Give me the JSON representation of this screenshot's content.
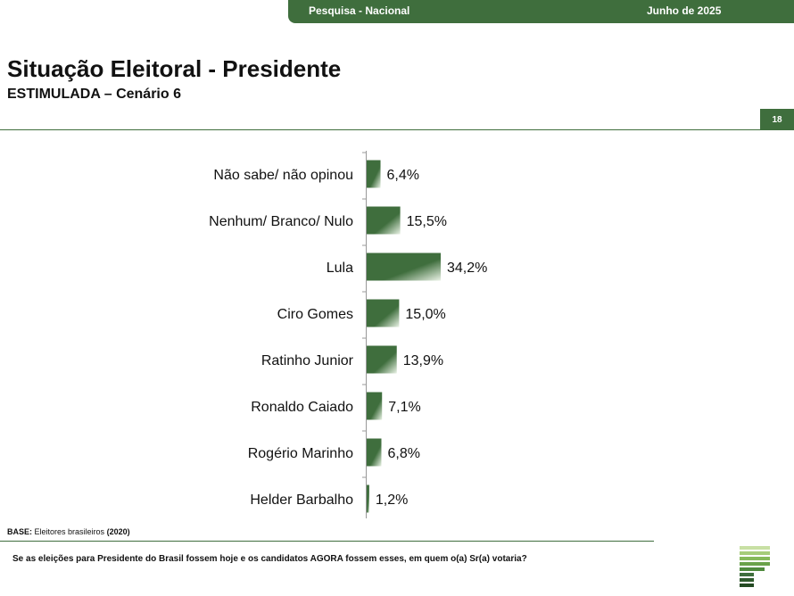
{
  "header": {
    "survey": "Pesquisa - Nacional",
    "date": "Junho de 2025"
  },
  "title": "Situação Eleitoral - Presidente",
  "subtitle": "ESTIMULADA – Cenário 6",
  "page_number": "18",
  "footer": {
    "base_label": "BASE:",
    "base_text": "Eleitores brasileiros",
    "base_count": "(2020)",
    "question": "Se as eleições para Presidente do Brasil fossem hoje e os candidatos AGORA fossem esses, em quem o(a) Sr(a) votaria?"
  },
  "colors": {
    "brand": "#3f6e3d",
    "bar_dark": "#3f6e3d",
    "bar_light": "#eaf3e6"
  },
  "chart_data": {
    "type": "bar",
    "orientation": "horizontal",
    "categories": [
      "Não sabe/ não opinou",
      "Nenhum/ Branco/ Nulo",
      "Lula",
      "Ciro Gomes",
      "Ratinho Junior",
      "Ronaldo Caiado",
      "Rogério Marinho",
      "Helder Barbalho"
    ],
    "values": [
      6.4,
      15.5,
      34.2,
      15.0,
      13.9,
      7.1,
      6.8,
      1.2
    ],
    "labels": [
      "6,4%",
      "15,5%",
      "34,2%",
      "15,0%",
      "13,9%",
      "7,1%",
      "6,8%",
      "1,2%"
    ],
    "xlim": [
      0,
      35
    ],
    "grid": false,
    "legend": "none"
  }
}
